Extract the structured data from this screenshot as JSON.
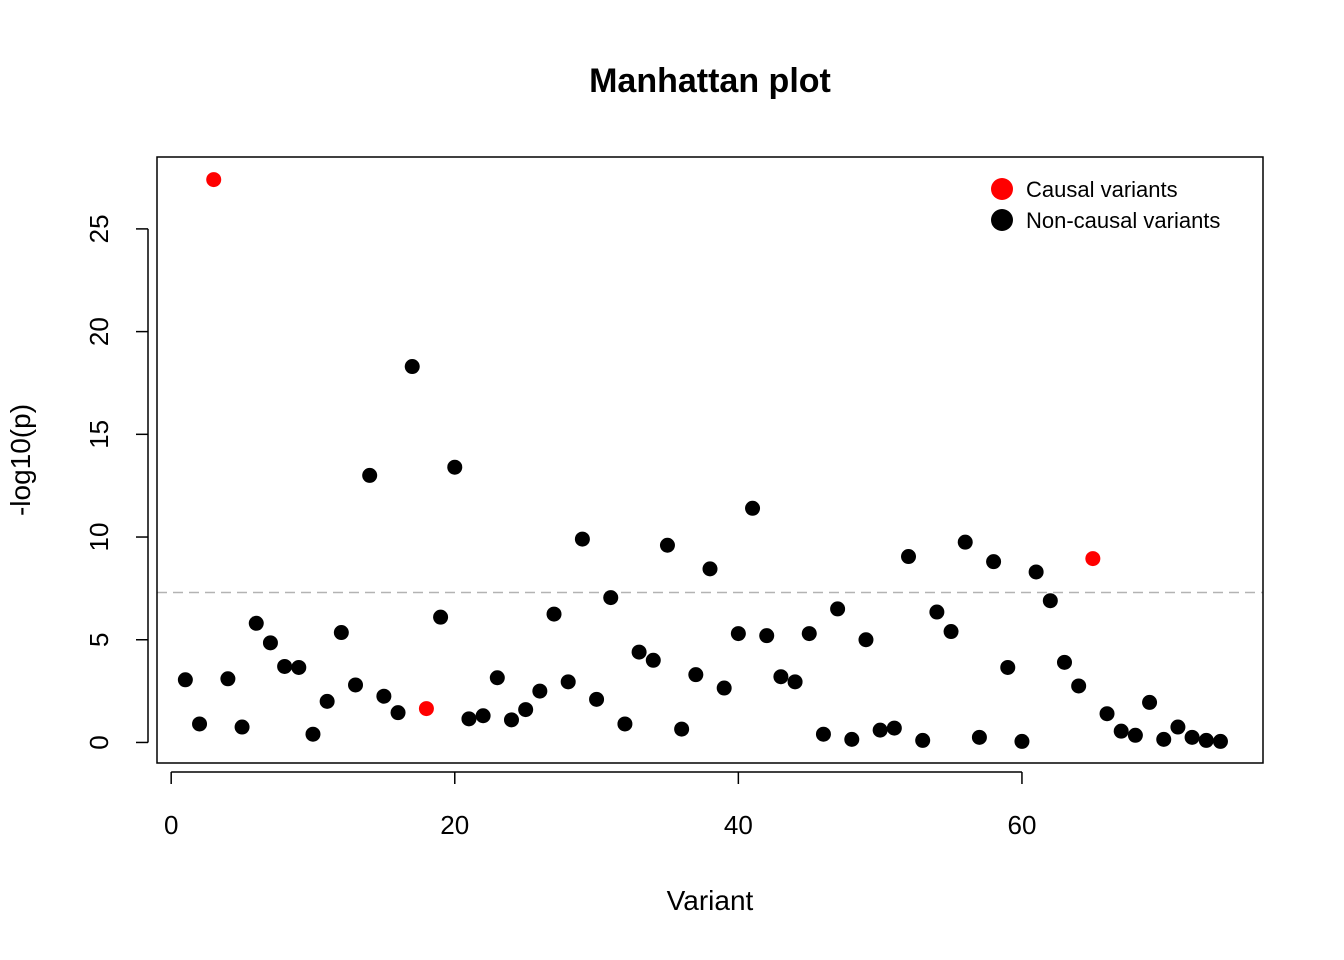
{
  "chart_data": {
    "type": "scatter",
    "title": "Manhattan plot",
    "xlabel": "Variant",
    "ylabel": "-log10(p)",
    "xlim": [
      -1,
      77
    ],
    "ylim": [
      -1,
      28.5
    ],
    "x_ticks": [
      0,
      20,
      40,
      60
    ],
    "y_ticks": [
      0,
      5,
      10,
      15,
      20,
      25
    ],
    "threshold": 7.3,
    "grid": false,
    "legend_position": "top-right",
    "colors": {
      "causal": "#ff0000",
      "non_causal": "#000000",
      "threshold": "#b3b3b3"
    },
    "legend": [
      {
        "label": "Causal variants",
        "color": "#ff0000"
      },
      {
        "label": "Non-causal variants",
        "color": "#000000"
      }
    ],
    "series": [
      {
        "name": "Causal variants",
        "color": "#ff0000",
        "x": [
          3,
          18,
          65
        ],
        "y": [
          27.4,
          1.65,
          8.95
        ]
      },
      {
        "name": "Non-causal variants",
        "color": "#000000",
        "x": [
          1,
          2,
          4,
          5,
          6,
          7,
          8,
          9,
          10,
          11,
          12,
          13,
          14,
          15,
          16,
          17,
          19,
          20,
          21,
          22,
          23,
          24,
          25,
          26,
          27,
          28,
          29,
          30,
          31,
          32,
          33,
          34,
          35,
          36,
          37,
          38,
          39,
          40,
          41,
          42,
          43,
          44,
          45,
          46,
          47,
          48,
          49,
          50,
          51,
          52,
          53,
          54,
          55,
          56,
          57,
          58,
          59,
          60,
          61,
          62,
          63,
          64,
          66,
          67,
          68,
          69,
          70,
          71,
          72,
          73,
          74
        ],
        "y": [
          3.05,
          0.9,
          3.1,
          0.75,
          5.8,
          4.85,
          3.7,
          3.65,
          0.4,
          2.0,
          5.35,
          2.8,
          13.0,
          2.25,
          1.45,
          18.3,
          6.1,
          13.4,
          1.15,
          1.3,
          3.15,
          1.1,
          1.6,
          2.5,
          6.25,
          2.95,
          9.9,
          2.1,
          7.05,
          0.9,
          4.4,
          4.0,
          9.6,
          0.65,
          3.3,
          8.45,
          2.65,
          5.3,
          11.4,
          5.2,
          3.2,
          2.95,
          5.3,
          0.4,
          6.5,
          0.15,
          5.0,
          0.6,
          0.7,
          9.05,
          0.1,
          6.35,
          5.4,
          9.75,
          0.25,
          8.8,
          3.65,
          0.05,
          8.3,
          6.9,
          3.9,
          2.75,
          1.4,
          0.55,
          0.35,
          1.95,
          0.15,
          0.75,
          0.25,
          0.1,
          0.05
        ]
      }
    ]
  }
}
